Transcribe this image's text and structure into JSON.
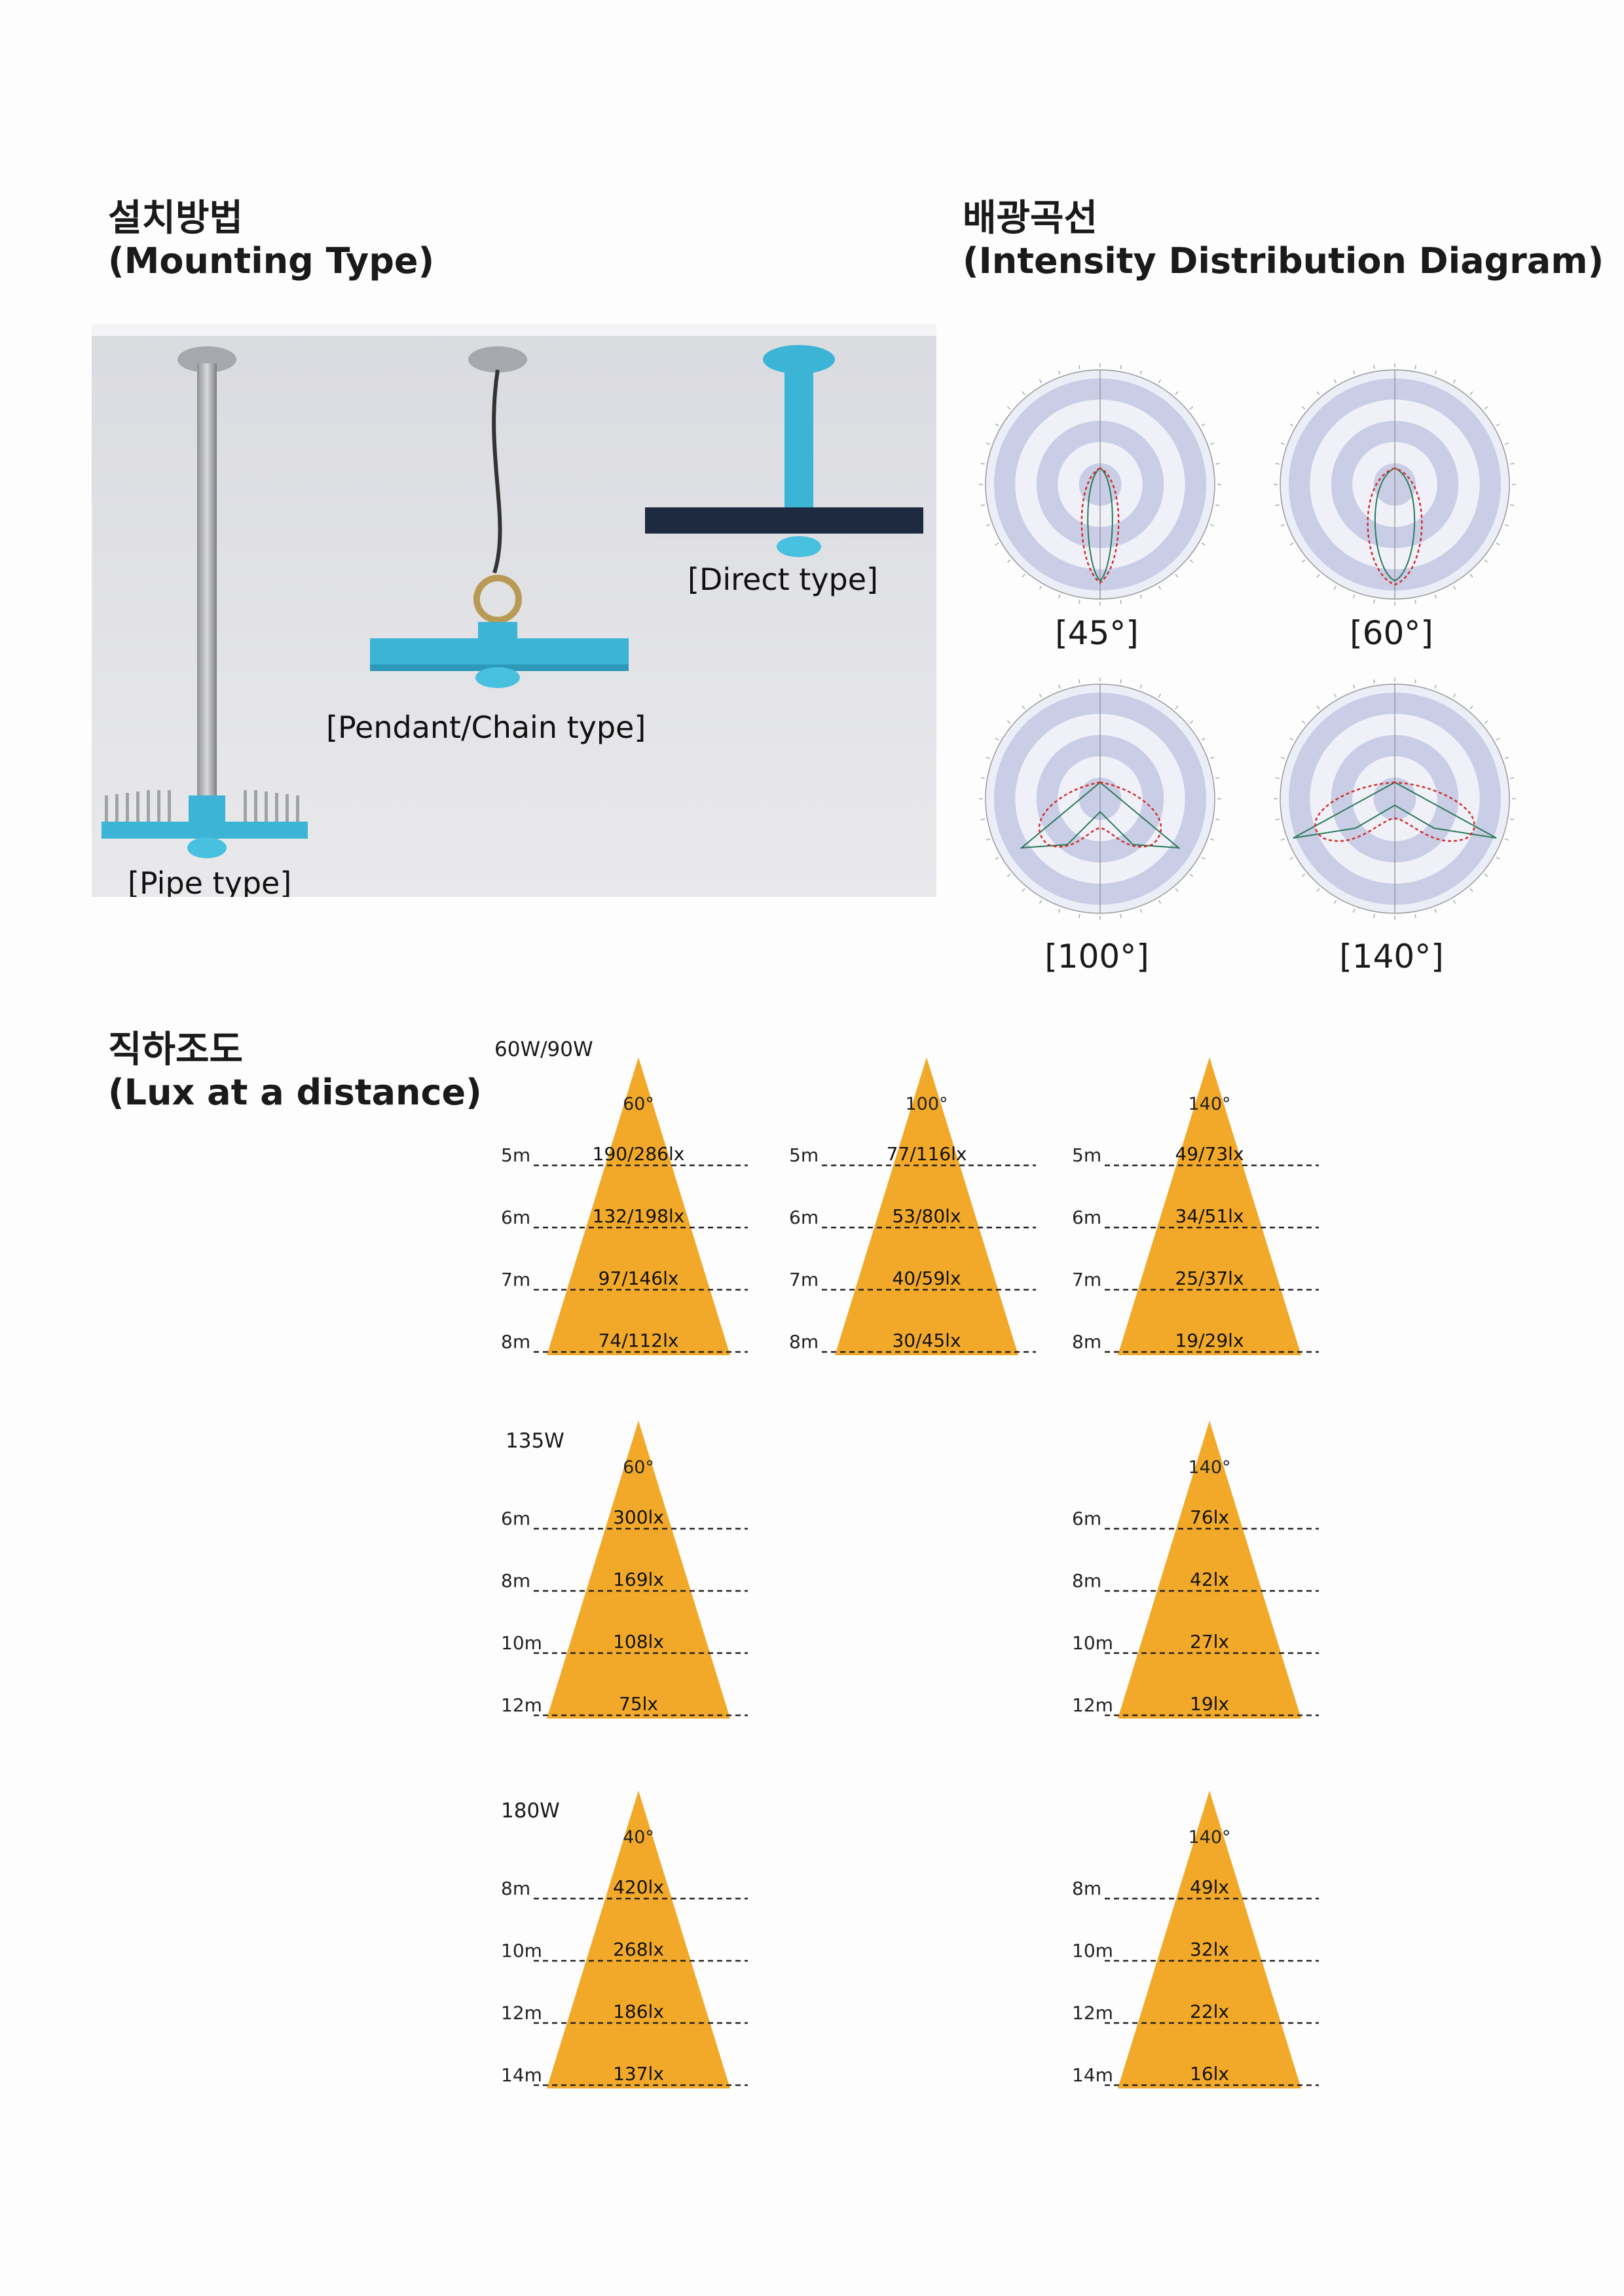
{
  "mounting": {
    "heading_ko": "설치방법",
    "heading_en": "(Mounting Type)",
    "labels": {
      "pipe": "[Pipe type]",
      "pendant": "[Pendant/Chain type]",
      "direct": "[Direct type]"
    }
  },
  "distribution": {
    "heading_ko": "배광곡선",
    "heading_en": "(Intensity Distribution Diagram)",
    "diagrams": [
      {
        "label": "[45°]"
      },
      {
        "label": "[60°]"
      },
      {
        "label": "[100°]"
      },
      {
        "label": "[140°]"
      }
    ]
  },
  "lux": {
    "heading_ko": "직하조도",
    "heading_en": "(Lux at a distance)",
    "groups": [
      {
        "label": "60W/90W",
        "cones": [
          {
            "angle": "60°",
            "rows": [
              {
                "d": "5m",
                "v": "190/286lx"
              },
              {
                "d": "6m",
                "v": "132/198lx"
              },
              {
                "d": "7m",
                "v": "97/146lx"
              },
              {
                "d": "8m",
                "v": "74/112lx"
              }
            ]
          },
          {
            "angle": "100°",
            "rows": [
              {
                "d": "5m",
                "v": "77/116lx"
              },
              {
                "d": "6m",
                "v": "53/80lx"
              },
              {
                "d": "7m",
                "v": "40/59lx"
              },
              {
                "d": "8m",
                "v": "30/45lx"
              }
            ]
          },
          {
            "angle": "140°",
            "rows": [
              {
                "d": "5m",
                "v": "49/73lx"
              },
              {
                "d": "6m",
                "v": "34/51lx"
              },
              {
                "d": "7m",
                "v": "25/37lx"
              },
              {
                "d": "8m",
                "v": "19/29lx"
              }
            ]
          }
        ]
      },
      {
        "label": "135W",
        "cones": [
          {
            "angle": "60°",
            "rows": [
              {
                "d": "6m",
                "v": "300lx"
              },
              {
                "d": "8m",
                "v": "169lx"
              },
              {
                "d": "10m",
                "v": "108lx"
              },
              {
                "d": "12m",
                "v": "75lx"
              }
            ]
          },
          {
            "angle": "140°",
            "rows": [
              {
                "d": "6m",
                "v": "76lx"
              },
              {
                "d": "8m",
                "v": "42lx"
              },
              {
                "d": "10m",
                "v": "27lx"
              },
              {
                "d": "12m",
                "v": "19lx"
              }
            ]
          }
        ]
      },
      {
        "label": "180W",
        "cones": [
          {
            "angle": "40°",
            "rows": [
              {
                "d": "8m",
                "v": "420lx"
              },
              {
                "d": "10m",
                "v": "268lx"
              },
              {
                "d": "12m",
                "v": "186lx"
              },
              {
                "d": "14m",
                "v": "137lx"
              }
            ]
          },
          {
            "angle": "140°",
            "rows": [
              {
                "d": "8m",
                "v": "49lx"
              },
              {
                "d": "10m",
                "v": "32lx"
              },
              {
                "d": "12m",
                "v": "22lx"
              },
              {
                "d": "14m",
                "v": "16lx"
              }
            ]
          }
        ]
      }
    ]
  },
  "colors": {
    "cone": "#f2a92a",
    "fixture": "#3cb4d6",
    "polar_ring": "#c9cde6",
    "polar_curve": "#d2302a",
    "polar_curve2": "#2a7a5a"
  }
}
